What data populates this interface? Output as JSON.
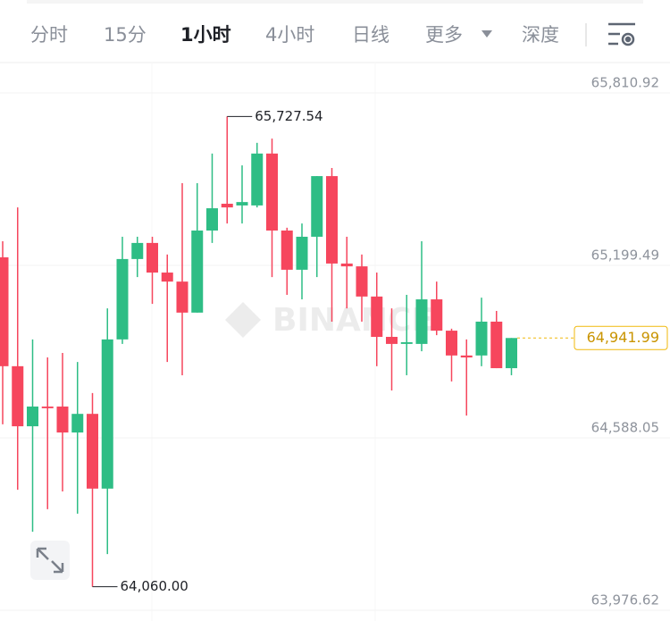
{
  "tabs": [
    "分时",
    "15分",
    "1小时",
    "4小时",
    "日线",
    "更多",
    "深度"
  ],
  "active_tab": 2,
  "watermark": "BINANCE",
  "chart_data": {
    "type": "candlestick",
    "up_color": "#2ebd85",
    "down_color": "#f6465d",
    "ylim": [
      63976.62,
      65810.92
    ],
    "yticks": [
      {
        "value": 65810.92,
        "label": "65,810.92"
      },
      {
        "value": 65199.49,
        "label": "65,199.49"
      },
      {
        "value": 64588.05,
        "label": "64,588.05"
      },
      {
        "value": 63976.62,
        "label": "63,976.62"
      }
    ],
    "grid": true,
    "open": [
      65228,
      64842,
      64629,
      64699,
      64699,
      64607,
      64673,
      64408,
      64937,
      65222,
      65279,
      65174,
      65142,
      65032,
      65323,
      65418,
      65412,
      65412,
      65596,
      65323,
      65184,
      65301,
      65516,
      65206,
      65196,
      65089,
      64946,
      64921,
      64921,
      65079,
      64968,
      64880,
      64880,
      65000,
      64835
    ],
    "high": [
      65285,
      65405,
      64937,
      64873,
      64889,
      64857,
      64747,
      65047,
      65301,
      65301,
      65301,
      65238,
      65491,
      65491,
      65596,
      65727.54,
      65554,
      65634,
      65649,
      65333,
      65348,
      65516,
      65545,
      65301,
      65238,
      65174,
      65047,
      65095,
      65285,
      65142,
      64975,
      64937,
      65085,
      65038,
      64941.99
    ],
    "low": [
      64636,
      64404,
      64255,
      64335,
      64398,
      64319,
      64060,
      64176,
      64921,
      65158,
      65063,
      64857,
      64810,
      65032,
      65279,
      65348,
      65348,
      65405,
      65158,
      65095,
      65079,
      65158,
      65000,
      65047,
      65000,
      64842,
      64756,
      64810,
      64895,
      64952,
      64788,
      64667,
      64842,
      64835,
      64810
    ],
    "close": [
      64842,
      64629,
      64699,
      64693,
      64607,
      64673,
      64408,
      64937,
      65222,
      65279,
      65174,
      65142,
      65032,
      65323,
      65402,
      65405,
      65424,
      65596,
      65323,
      65184,
      65301,
      65516,
      65206,
      65196,
      65089,
      64946,
      64921,
      64927,
      65079,
      64968,
      64880,
      64873,
      65000,
      64835,
      64941.99
    ],
    "annotations": [
      {
        "value": 65727.54,
        "label": "65,727.54"
      },
      {
        "value": 64060,
        "label": "64,060.00"
      }
    ],
    "last_price": {
      "value": 64941.99,
      "label": "64,941.99"
    }
  }
}
